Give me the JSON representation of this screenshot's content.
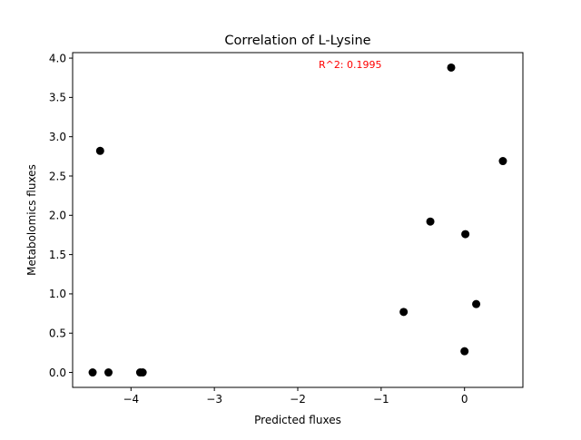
{
  "chart_data": {
    "type": "scatter",
    "title": "Correlation of L-Lysine",
    "xlabel": "Predicted fluxes",
    "ylabel": "Metabolomics fluxes",
    "xlim": [
      -4.7,
      0.7
    ],
    "ylim": [
      -0.19,
      4.07
    ],
    "xticks": [
      -4,
      -3,
      -2,
      -1,
      0
    ],
    "xtick_labels": [
      "−4",
      "−3",
      "−2",
      "−1",
      "0"
    ],
    "yticks": [
      0.0,
      0.5,
      1.0,
      1.5,
      2.0,
      2.5,
      3.0,
      3.5,
      4.0
    ],
    "ytick_labels": [
      "0.0",
      "0.5",
      "1.0",
      "1.5",
      "2.0",
      "2.5",
      "3.0",
      "3.5",
      "4.0"
    ],
    "grid": false,
    "point_color": "#000000",
    "points": [
      {
        "x": -4.46,
        "y": 0.0
      },
      {
        "x": -4.27,
        "y": 0.0
      },
      {
        "x": -3.89,
        "y": 0.0
      },
      {
        "x": -3.86,
        "y": 0.0
      },
      {
        "x": -4.37,
        "y": 2.82
      },
      {
        "x": -0.73,
        "y": 0.77
      },
      {
        "x": -0.41,
        "y": 1.92
      },
      {
        "x": -0.16,
        "y": 3.88
      },
      {
        "x": 0.01,
        "y": 1.76
      },
      {
        "x": 0.0,
        "y": 0.27
      },
      {
        "x": 0.14,
        "y": 0.87
      },
      {
        "x": 0.46,
        "y": 2.69
      }
    ],
    "annotation": {
      "text": "R^2: 0.1995",
      "x": -1.75,
      "y": 3.92,
      "color": "#ff0000"
    }
  }
}
